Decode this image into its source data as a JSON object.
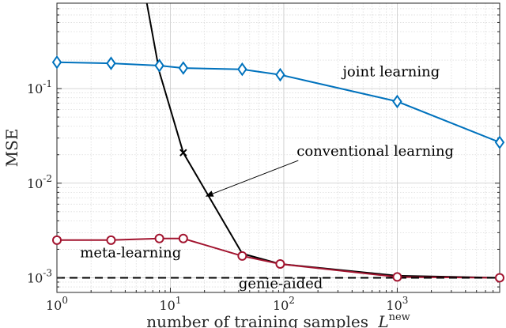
{
  "chart_data": {
    "type": "line",
    "title": "",
    "xlabel": "number of training samples",
    "xlabel_symbol": "L",
    "xlabel_superscript": "new",
    "ylabel": "MSE",
    "xscale": "log",
    "yscale": "log",
    "xlim": [
      1,
      8000
    ],
    "ylim": [
      0.0007,
      0.8
    ],
    "x_tick_labels": [
      {
        "value": 1,
        "base": "10",
        "exp": "0"
      },
      {
        "value": 10,
        "base": "10",
        "exp": "1"
      },
      {
        "value": 100,
        "base": "10",
        "exp": "2"
      },
      {
        "value": 1000,
        "base": "10",
        "exp": "3"
      }
    ],
    "y_tick_labels": [
      {
        "value": 0.001,
        "base": "10",
        "exp": "-3"
      },
      {
        "value": 0.01,
        "base": "10",
        "exp": "-2"
      },
      {
        "value": 0.1,
        "base": "10",
        "exp": "-1"
      }
    ],
    "grid": true,
    "series": [
      {
        "name": "joint learning",
        "color": "#0072BD",
        "marker": "diamond",
        "x": [
          1,
          3,
          8,
          13,
          43,
          93,
          1000,
          8000
        ],
        "y": [
          0.19,
          0.185,
          0.175,
          0.165,
          0.16,
          0.14,
          0.073,
          0.027
        ]
      },
      {
        "name": "conventional learning",
        "color": "#000000",
        "marker": "cross",
        "x": [
          6,
          8,
          13,
          43,
          93,
          1000,
          8000
        ],
        "y": [
          1.0,
          0.15,
          0.021,
          0.0018,
          0.0014,
          0.00105,
          0.001
        ],
        "marker_x": [
          13
        ]
      },
      {
        "name": "meta-learning",
        "color": "#A2142F",
        "marker": "circle",
        "x": [
          1,
          3,
          8,
          13,
          43,
          93,
          1000,
          8000
        ],
        "y": [
          0.0025,
          0.0025,
          0.0026,
          0.0026,
          0.0017,
          0.0014,
          0.00102,
          0.001
        ]
      },
      {
        "name": "genie-aided",
        "color": "#000000",
        "style": "dashed",
        "x": [
          1,
          8000
        ],
        "y": [
          0.001,
          0.001
        ]
      }
    ],
    "annotations": [
      {
        "text": "joint learning",
        "x": 330,
        "y": 0.135,
        "arrow": false
      },
      {
        "text": "conventional learning",
        "x": 130,
        "y": 0.0195,
        "arrow": true,
        "arrow_to_x": 20,
        "arrow_to_y": 0.007
      },
      {
        "text": "meta-learning",
        "x": 1.6,
        "y": 0.00165,
        "arrow": false
      },
      {
        "text": "genie-aided",
        "x": 40,
        "y": 0.00078,
        "arrow": false
      }
    ]
  }
}
